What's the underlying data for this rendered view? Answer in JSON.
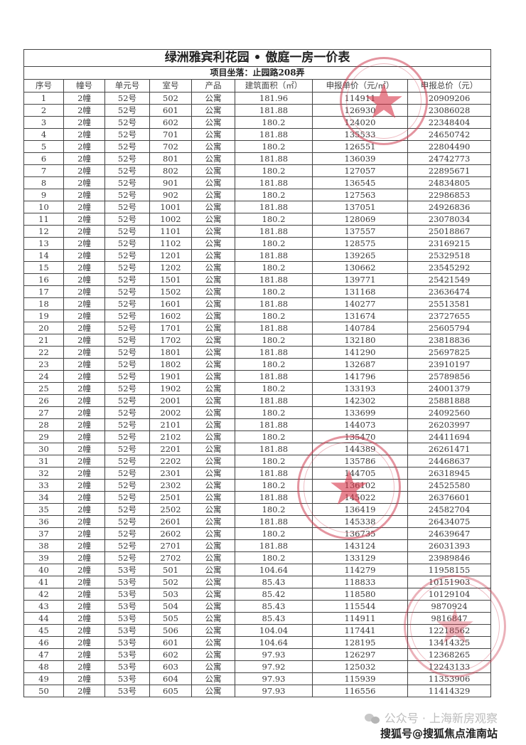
{
  "document": {
    "title": "绿洲雅宾利花园 • 傲庭一房一价表",
    "address": "项目坐落：止园路208弄",
    "columns": [
      "序号",
      "幢号",
      "单元号",
      "室号",
      "产品",
      "建筑面积（㎡）",
      "申报单价（元/㎡）",
      "申报总价（元）"
    ],
    "rows": [
      [
        "1",
        "2幢",
        "52号",
        "502",
        "公寓",
        "181.96",
        "114911",
        "20909206"
      ],
      [
        "2",
        "2幢",
        "52号",
        "601",
        "公寓",
        "181.88",
        "126930",
        "23086028"
      ],
      [
        "3",
        "2幢",
        "52号",
        "602",
        "公寓",
        "180.2",
        "124020",
        "22348404"
      ],
      [
        "4",
        "2幢",
        "52号",
        "701",
        "公寓",
        "181.88",
        "135533",
        "24650742"
      ],
      [
        "5",
        "2幢",
        "52号",
        "702",
        "公寓",
        "180.2",
        "126551",
        "22804490"
      ],
      [
        "6",
        "2幢",
        "52号",
        "801",
        "公寓",
        "181.88",
        "136039",
        "24742773"
      ],
      [
        "7",
        "2幢",
        "52号",
        "802",
        "公寓",
        "180.2",
        "127057",
        "22895671"
      ],
      [
        "8",
        "2幢",
        "52号",
        "901",
        "公寓",
        "181.88",
        "136545",
        "24834805"
      ],
      [
        "9",
        "2幢",
        "52号",
        "902",
        "公寓",
        "180.2",
        "127563",
        "22986853"
      ],
      [
        "10",
        "2幢",
        "52号",
        "1001",
        "公寓",
        "181.88",
        "137051",
        "24926836"
      ],
      [
        "11",
        "2幢",
        "52号",
        "1002",
        "公寓",
        "180.2",
        "128069",
        "23078034"
      ],
      [
        "12",
        "2幢",
        "52号",
        "1101",
        "公寓",
        "181.88",
        "137557",
        "25018867"
      ],
      [
        "13",
        "2幢",
        "52号",
        "1102",
        "公寓",
        "180.2",
        "128575",
        "23169215"
      ],
      [
        "14",
        "2幢",
        "52号",
        "1201",
        "公寓",
        "181.88",
        "139265",
        "25329518"
      ],
      [
        "15",
        "2幢",
        "52号",
        "1202",
        "公寓",
        "180.2",
        "130662",
        "23545292"
      ],
      [
        "16",
        "2幢",
        "52号",
        "1501",
        "公寓",
        "181.88",
        "139771",
        "25421549"
      ],
      [
        "17",
        "2幢",
        "52号",
        "1502",
        "公寓",
        "180.2",
        "131168",
        "23636474"
      ],
      [
        "18",
        "2幢",
        "52号",
        "1601",
        "公寓",
        "181.88",
        "140277",
        "25513581"
      ],
      [
        "19",
        "2幢",
        "52号",
        "1602",
        "公寓",
        "180.2",
        "131674",
        "23727655"
      ],
      [
        "20",
        "2幢",
        "52号",
        "1701",
        "公寓",
        "181.88",
        "140784",
        "25605794"
      ],
      [
        "21",
        "2幢",
        "52号",
        "1702",
        "公寓",
        "180.2",
        "132180",
        "23818836"
      ],
      [
        "22",
        "2幢",
        "52号",
        "1801",
        "公寓",
        "181.88",
        "141290",
        "25697825"
      ],
      [
        "23",
        "2幢",
        "52号",
        "1802",
        "公寓",
        "180.2",
        "132687",
        "23910197"
      ],
      [
        "24",
        "2幢",
        "52号",
        "1901",
        "公寓",
        "181.88",
        "141796",
        "25789856"
      ],
      [
        "25",
        "2幢",
        "52号",
        "1902",
        "公寓",
        "180.2",
        "133193",
        "24001379"
      ],
      [
        "26",
        "2幢",
        "52号",
        "2001",
        "公寓",
        "181.88",
        "142302",
        "25881888"
      ],
      [
        "27",
        "2幢",
        "52号",
        "2002",
        "公寓",
        "180.2",
        "133699",
        "24092560"
      ],
      [
        "28",
        "2幢",
        "52号",
        "2101",
        "公寓",
        "181.88",
        "144073",
        "26203997"
      ],
      [
        "29",
        "2幢",
        "52号",
        "2102",
        "公寓",
        "180.2",
        "135470",
        "24411694"
      ],
      [
        "30",
        "2幢",
        "52号",
        "2201",
        "公寓",
        "181.88",
        "144389",
        "26261471"
      ],
      [
        "31",
        "2幢",
        "52号",
        "2202",
        "公寓",
        "180.2",
        "135786",
        "24468637"
      ],
      [
        "32",
        "2幢",
        "52号",
        "2301",
        "公寓",
        "181.88",
        "144705",
        "26318945"
      ],
      [
        "33",
        "2幢",
        "52号",
        "2302",
        "公寓",
        "180.2",
        "136102",
        "24525580"
      ],
      [
        "34",
        "2幢",
        "52号",
        "2501",
        "公寓",
        "181.88",
        "145022",
        "26376601"
      ],
      [
        "35",
        "2幢",
        "52号",
        "2502",
        "公寓",
        "180.2",
        "136419",
        "24582704"
      ],
      [
        "36",
        "2幢",
        "52号",
        "2601",
        "公寓",
        "181.88",
        "145338",
        "26434075"
      ],
      [
        "37",
        "2幢",
        "52号",
        "2602",
        "公寓",
        "180.2",
        "136735",
        "24639647"
      ],
      [
        "38",
        "2幢",
        "52号",
        "2701",
        "公寓",
        "181.88",
        "143124",
        "26031393"
      ],
      [
        "39",
        "2幢",
        "52号",
        "2702",
        "公寓",
        "180.2",
        "133129",
        "23989846"
      ],
      [
        "40",
        "2幢",
        "53号",
        "501",
        "公寓",
        "104.64",
        "114279",
        "11958155"
      ],
      [
        "41",
        "2幢",
        "53号",
        "502",
        "公寓",
        "85.43",
        "118833",
        "10151903"
      ],
      [
        "42",
        "2幢",
        "53号",
        "503",
        "公寓",
        "85.42",
        "118580",
        "10129104"
      ],
      [
        "43",
        "2幢",
        "53号",
        "504",
        "公寓",
        "85.43",
        "115544",
        "9870924"
      ],
      [
        "44",
        "2幢",
        "53号",
        "505",
        "公寓",
        "85.43",
        "114911",
        "9816847"
      ],
      [
        "45",
        "2幢",
        "53号",
        "506",
        "公寓",
        "104.04",
        "117441",
        "12218562"
      ],
      [
        "46",
        "2幢",
        "53号",
        "601",
        "公寓",
        "104.64",
        "128195",
        "13414325"
      ],
      [
        "47",
        "2幢",
        "53号",
        "602",
        "公寓",
        "97.93",
        "126297",
        "12368265"
      ],
      [
        "48",
        "2幢",
        "53号",
        "603",
        "公寓",
        "97.92",
        "125032",
        "12243133"
      ],
      [
        "49",
        "2幢",
        "53号",
        "604",
        "公寓",
        "97.93",
        "115939",
        "11353906"
      ],
      [
        "50",
        "2幢",
        "53号",
        "605",
        "公寓",
        "97.93",
        "116556",
        "11414329"
      ]
    ]
  },
  "stamps": {
    "color": "#cd3c50",
    "icon": "star-icon"
  },
  "footer": {
    "wechat_icon": "wechat-icon",
    "wechat_account": "公众号 · 上海新房观察",
    "sohu_account": "搜狐号@搜狐焦点淮南站"
  }
}
